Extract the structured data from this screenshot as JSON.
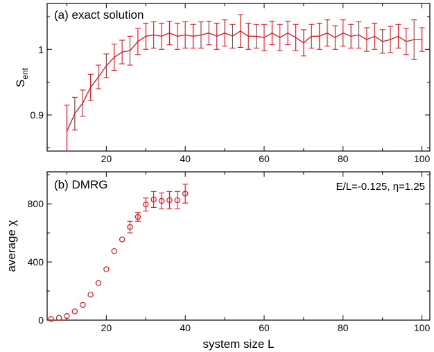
{
  "colors": {
    "series": "#e0141e",
    "axis": "#000000"
  },
  "chart_data": [
    {
      "type": "line",
      "title": "(a) exact solution",
      "xlabel": "",
      "ylabel_main": "S",
      "ylabel_sub": "ent",
      "xlim": [
        5,
        102
      ],
      "ylim": [
        0.845,
        1.07
      ],
      "xticks": [
        20,
        40,
        60,
        80,
        100
      ],
      "xtick_labels": [
        "20",
        "40",
        "60",
        "80",
        "100"
      ],
      "yticks": [
        0.9,
        1.0
      ],
      "ytick_labels": [
        "0.9",
        "1"
      ],
      "error_bars": true,
      "series": [
        {
          "x": [
            10,
            12,
            14,
            16,
            18,
            20,
            22,
            24,
            26,
            28,
            30,
            32,
            34,
            36,
            38,
            40,
            42,
            44,
            46,
            48,
            50,
            52,
            54,
            56,
            58,
            60,
            62,
            64,
            66,
            68,
            70,
            72,
            74,
            76,
            78,
            80,
            82,
            84,
            86,
            88,
            90,
            92,
            94,
            96,
            98,
            100
          ],
          "y": [
            0.875,
            0.902,
            0.918,
            0.942,
            0.958,
            0.975,
            0.988,
            0.996,
            0.998,
            1.012,
            1.02,
            1.022,
            1.02,
            1.025,
            1.02,
            1.022,
            1.02,
            1.022,
            1.025,
            1.02,
            1.025,
            1.02,
            1.028,
            1.02,
            1.02,
            1.018,
            1.025,
            1.018,
            1.025,
            1.018,
            1.01,
            1.02,
            1.02,
            1.025,
            1.018,
            1.025,
            1.02,
            1.022,
            1.015,
            1.02,
            1.012,
            1.015,
            1.02,
            1.012,
            1.015,
            1.015
          ],
          "err": [
            0.04,
            0.025,
            0.02,
            0.02,
            0.018,
            0.018,
            0.02,
            0.018,
            0.022,
            0.02,
            0.02,
            0.02,
            0.02,
            0.018,
            0.02,
            0.02,
            0.018,
            0.02,
            0.018,
            0.02,
            0.02,
            0.018,
            0.025,
            0.02,
            0.018,
            0.02,
            0.018,
            0.02,
            0.018,
            0.02,
            0.02,
            0.018,
            0.02,
            0.02,
            0.018,
            0.02,
            0.018,
            0.02,
            0.018,
            0.02,
            0.018,
            0.02,
            0.018,
            0.02,
            0.03,
            0.018
          ]
        }
      ]
    },
    {
      "type": "scatter",
      "title": "(b) DMRG",
      "annotation": "E/L=-0.125, η=1.25",
      "xlabel": "system size L",
      "ylabel": "average χ",
      "xlim": [
        5,
        102
      ],
      "ylim": [
        0,
        1020
      ],
      "xticks": [
        20,
        40,
        60,
        80,
        100
      ],
      "xtick_labels": [
        "20",
        "40",
        "60",
        "80",
        "100"
      ],
      "yticks": [
        0,
        400,
        800
      ],
      "ytick_labels": [
        "0",
        "400",
        "800"
      ],
      "marker": "open-circle",
      "series": [
        {
          "x": [
            6,
            8,
            10,
            12,
            14,
            16,
            18,
            20,
            22,
            24,
            26,
            28,
            30,
            32,
            34,
            36,
            38,
            40
          ],
          "y": [
            8,
            15,
            28,
            60,
            105,
            175,
            255,
            350,
            475,
            555,
            640,
            710,
            795,
            830,
            820,
            825,
            825,
            870
          ],
          "err": [
            0,
            0,
            0,
            0,
            0,
            0,
            0,
            0,
            0,
            0,
            40,
            30,
            45,
            55,
            55,
            60,
            60,
            65
          ]
        }
      ]
    }
  ]
}
